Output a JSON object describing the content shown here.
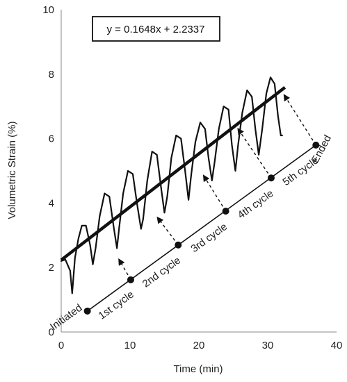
{
  "chart_data": {
    "type": "line",
    "title": "",
    "xlabel": "Time (min)",
    "ylabel": "Volumetric Strain (%)",
    "xlim": [
      0,
      40
    ],
    "ylim": [
      0,
      10
    ],
    "xticks": [
      0,
      10,
      20,
      30,
      40
    ],
    "yticks": [
      0,
      2,
      4,
      6,
      8,
      10
    ],
    "grid": false,
    "legend": "none",
    "series": [
      {
        "type": "line",
        "color": "#111111",
        "x": [
          0,
          0.6,
          1.3,
          1.6,
          2.0,
          2.5,
          3.0,
          3.6,
          4.2,
          4.6,
          5.0,
          5.6,
          6.3,
          7.0,
          7.6,
          8.1,
          8.4,
          9.0,
          9.7,
          10.4,
          11.0,
          11.6,
          11.9,
          12.5,
          13.2,
          13.9,
          14.5,
          15.0,
          15.4,
          16.0,
          16.7,
          17.4,
          18.0,
          18.5,
          18.9,
          19.5,
          20.2,
          20.9,
          21.4,
          21.9,
          22.3,
          22.9,
          23.6,
          24.3,
          24.8,
          25.3,
          25.7,
          26.3,
          27.0,
          27.7,
          28.2,
          28.7,
          29.2,
          29.8,
          30.4,
          31.0,
          31.5,
          31.9,
          32.1
        ],
        "y": [
          2.2,
          2.25,
          1.9,
          1.2,
          2.3,
          2.9,
          3.3,
          3.3,
          2.7,
          2.1,
          2.6,
          3.6,
          4.3,
          4.2,
          3.3,
          2.6,
          3.2,
          4.3,
          5.0,
          4.9,
          4.0,
          3.2,
          3.5,
          4.7,
          5.6,
          5.5,
          4.5,
          3.7,
          4.2,
          5.4,
          6.1,
          6.0,
          5.0,
          4.1,
          4.9,
          5.9,
          6.5,
          6.3,
          5.4,
          4.7,
          5.3,
          6.3,
          7.0,
          6.9,
          5.8,
          5.0,
          5.8,
          6.8,
          7.5,
          7.3,
          6.3,
          5.5,
          6.3,
          7.4,
          7.9,
          7.7,
          6.7,
          6.1,
          6.1
        ]
      }
    ],
    "trendline": {
      "slope": 0.1648,
      "intercept": 2.2337,
      "x_range": [
        0,
        32.5
      ],
      "label": "y = 0.1648x + 2.2337"
    },
    "cycle_axis": {
      "points": [
        {
          "x": 3.8,
          "y": 0.65
        },
        {
          "x": 10.1,
          "y": 1.62
        },
        {
          "x": 17.0,
          "y": 2.7
        },
        {
          "x": 23.9,
          "y": 3.75
        },
        {
          "x": 30.5,
          "y": 4.78
        },
        {
          "x": 37.0,
          "y": 5.8
        }
      ],
      "labels": [
        "Initiated",
        "1st cycle",
        "2nd cycle",
        "3rd cycle",
        "4th cycle",
        "5th cycle",
        "Ended"
      ]
    },
    "arrows": [
      {
        "from": [
          10.1,
          1.62
        ],
        "to": [
          8.4,
          2.25
        ]
      },
      {
        "from": [
          17.0,
          2.7
        ],
        "to": [
          14.0,
          3.55
        ]
      },
      {
        "from": [
          23.9,
          3.75
        ],
        "to": [
          20.7,
          4.85
        ]
      },
      {
        "from": [
          30.5,
          4.78
        ],
        "to": [
          25.7,
          6.3
        ]
      },
      {
        "from": [
          37.0,
          5.8
        ],
        "to": [
          32.4,
          7.35
        ]
      }
    ]
  }
}
